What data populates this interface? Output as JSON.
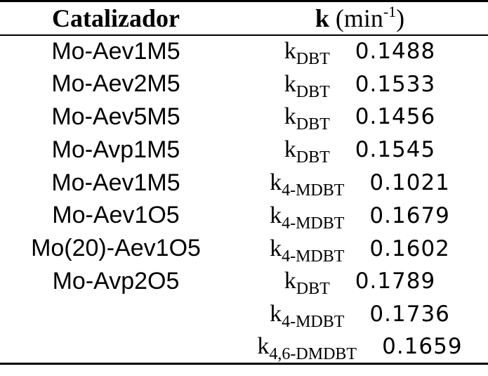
{
  "table": {
    "header": {
      "catalyst": "Catalizador",
      "k_symbol": "k",
      "unit_open": "(min",
      "unit_exp": "-1",
      "unit_close": ")"
    },
    "rows": [
      {
        "catalyst": "Mo-Aev1M5",
        "k": "k",
        "sub": "DBT",
        "value": "0.1488"
      },
      {
        "catalyst": "Mo-Aev2M5",
        "k": "k",
        "sub": "DBT",
        "value": "0.1533"
      },
      {
        "catalyst": "Mo-Aev5M5",
        "k": "k",
        "sub": "DBT",
        "value": "0.1456"
      },
      {
        "catalyst": "Mo-Avp1M5",
        "k": "k",
        "sub": "DBT",
        "value": "0.1545"
      },
      {
        "catalyst": "Mo-Aev1M5",
        "k": "k",
        "sub": "4-MDBT",
        "value": "0.1021"
      },
      {
        "catalyst": "Mo-Aev1O5",
        "k": "k",
        "sub": "4-MDBT",
        "value": "0.1679"
      },
      {
        "catalyst": "Mo(20)-Aev1O5",
        "k": "k",
        "sub": "4-MDBT",
        "value": "0.1602"
      },
      {
        "catalyst": "Mo-Avp2O5",
        "k": "k",
        "sub": "DBT",
        "value": "0.1789"
      },
      {
        "catalyst": null,
        "k": "k",
        "sub": "4-MDBT",
        "value": "0.1736"
      },
      {
        "catalyst": null,
        "k": "k",
        "sub": "4,6-DMDBT",
        "value": "0.1659"
      }
    ]
  }
}
